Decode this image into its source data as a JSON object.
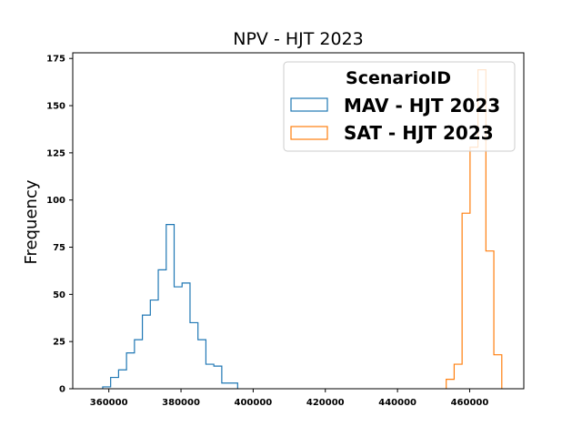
{
  "chart_data": {
    "type": "histogram",
    "title": "NPV - HJT 2023",
    "xlabel": "",
    "ylabel": "Frequency",
    "xlim": [
      350000,
      475000
    ],
    "ylim": [
      0,
      178
    ],
    "xticks": [
      360000,
      380000,
      400000,
      420000,
      440000,
      460000
    ],
    "xtick_labels": [
      "360000",
      "380000",
      "400000",
      "420000",
      "440000",
      "460000"
    ],
    "yticks": [
      0,
      25,
      50,
      75,
      100,
      125,
      150,
      175
    ],
    "ytick_labels": [
      "0",
      "25",
      "50",
      "75",
      "100",
      "125",
      "150",
      "175"
    ],
    "grid": false,
    "legend": {
      "title": "ScenarioID",
      "placement": "upper right"
    },
    "series": [
      {
        "name": "MAV - HJT 2023",
        "color": "#1f77b4",
        "bin_edges": [
          358300,
          360500,
          362700,
          364900,
          367100,
          369300,
          371500,
          373700,
          375900,
          378100,
          380300,
          382500,
          384700,
          386900,
          389100,
          391300,
          393500,
          395700
        ],
        "counts": [
          1,
          6,
          10,
          19,
          26,
          39,
          47,
          63,
          87,
          54,
          56,
          35,
          26,
          13,
          12,
          3,
          3
        ]
      },
      {
        "name": "SAT - HJT 2023",
        "color": "#ff7f0e",
        "bin_edges": [
          453500,
          455700,
          457900,
          460100,
          462300,
          464500,
          466700,
          468900
        ],
        "counts": [
          5,
          13,
          93,
          128,
          169,
          73,
          18
        ]
      }
    ]
  }
}
